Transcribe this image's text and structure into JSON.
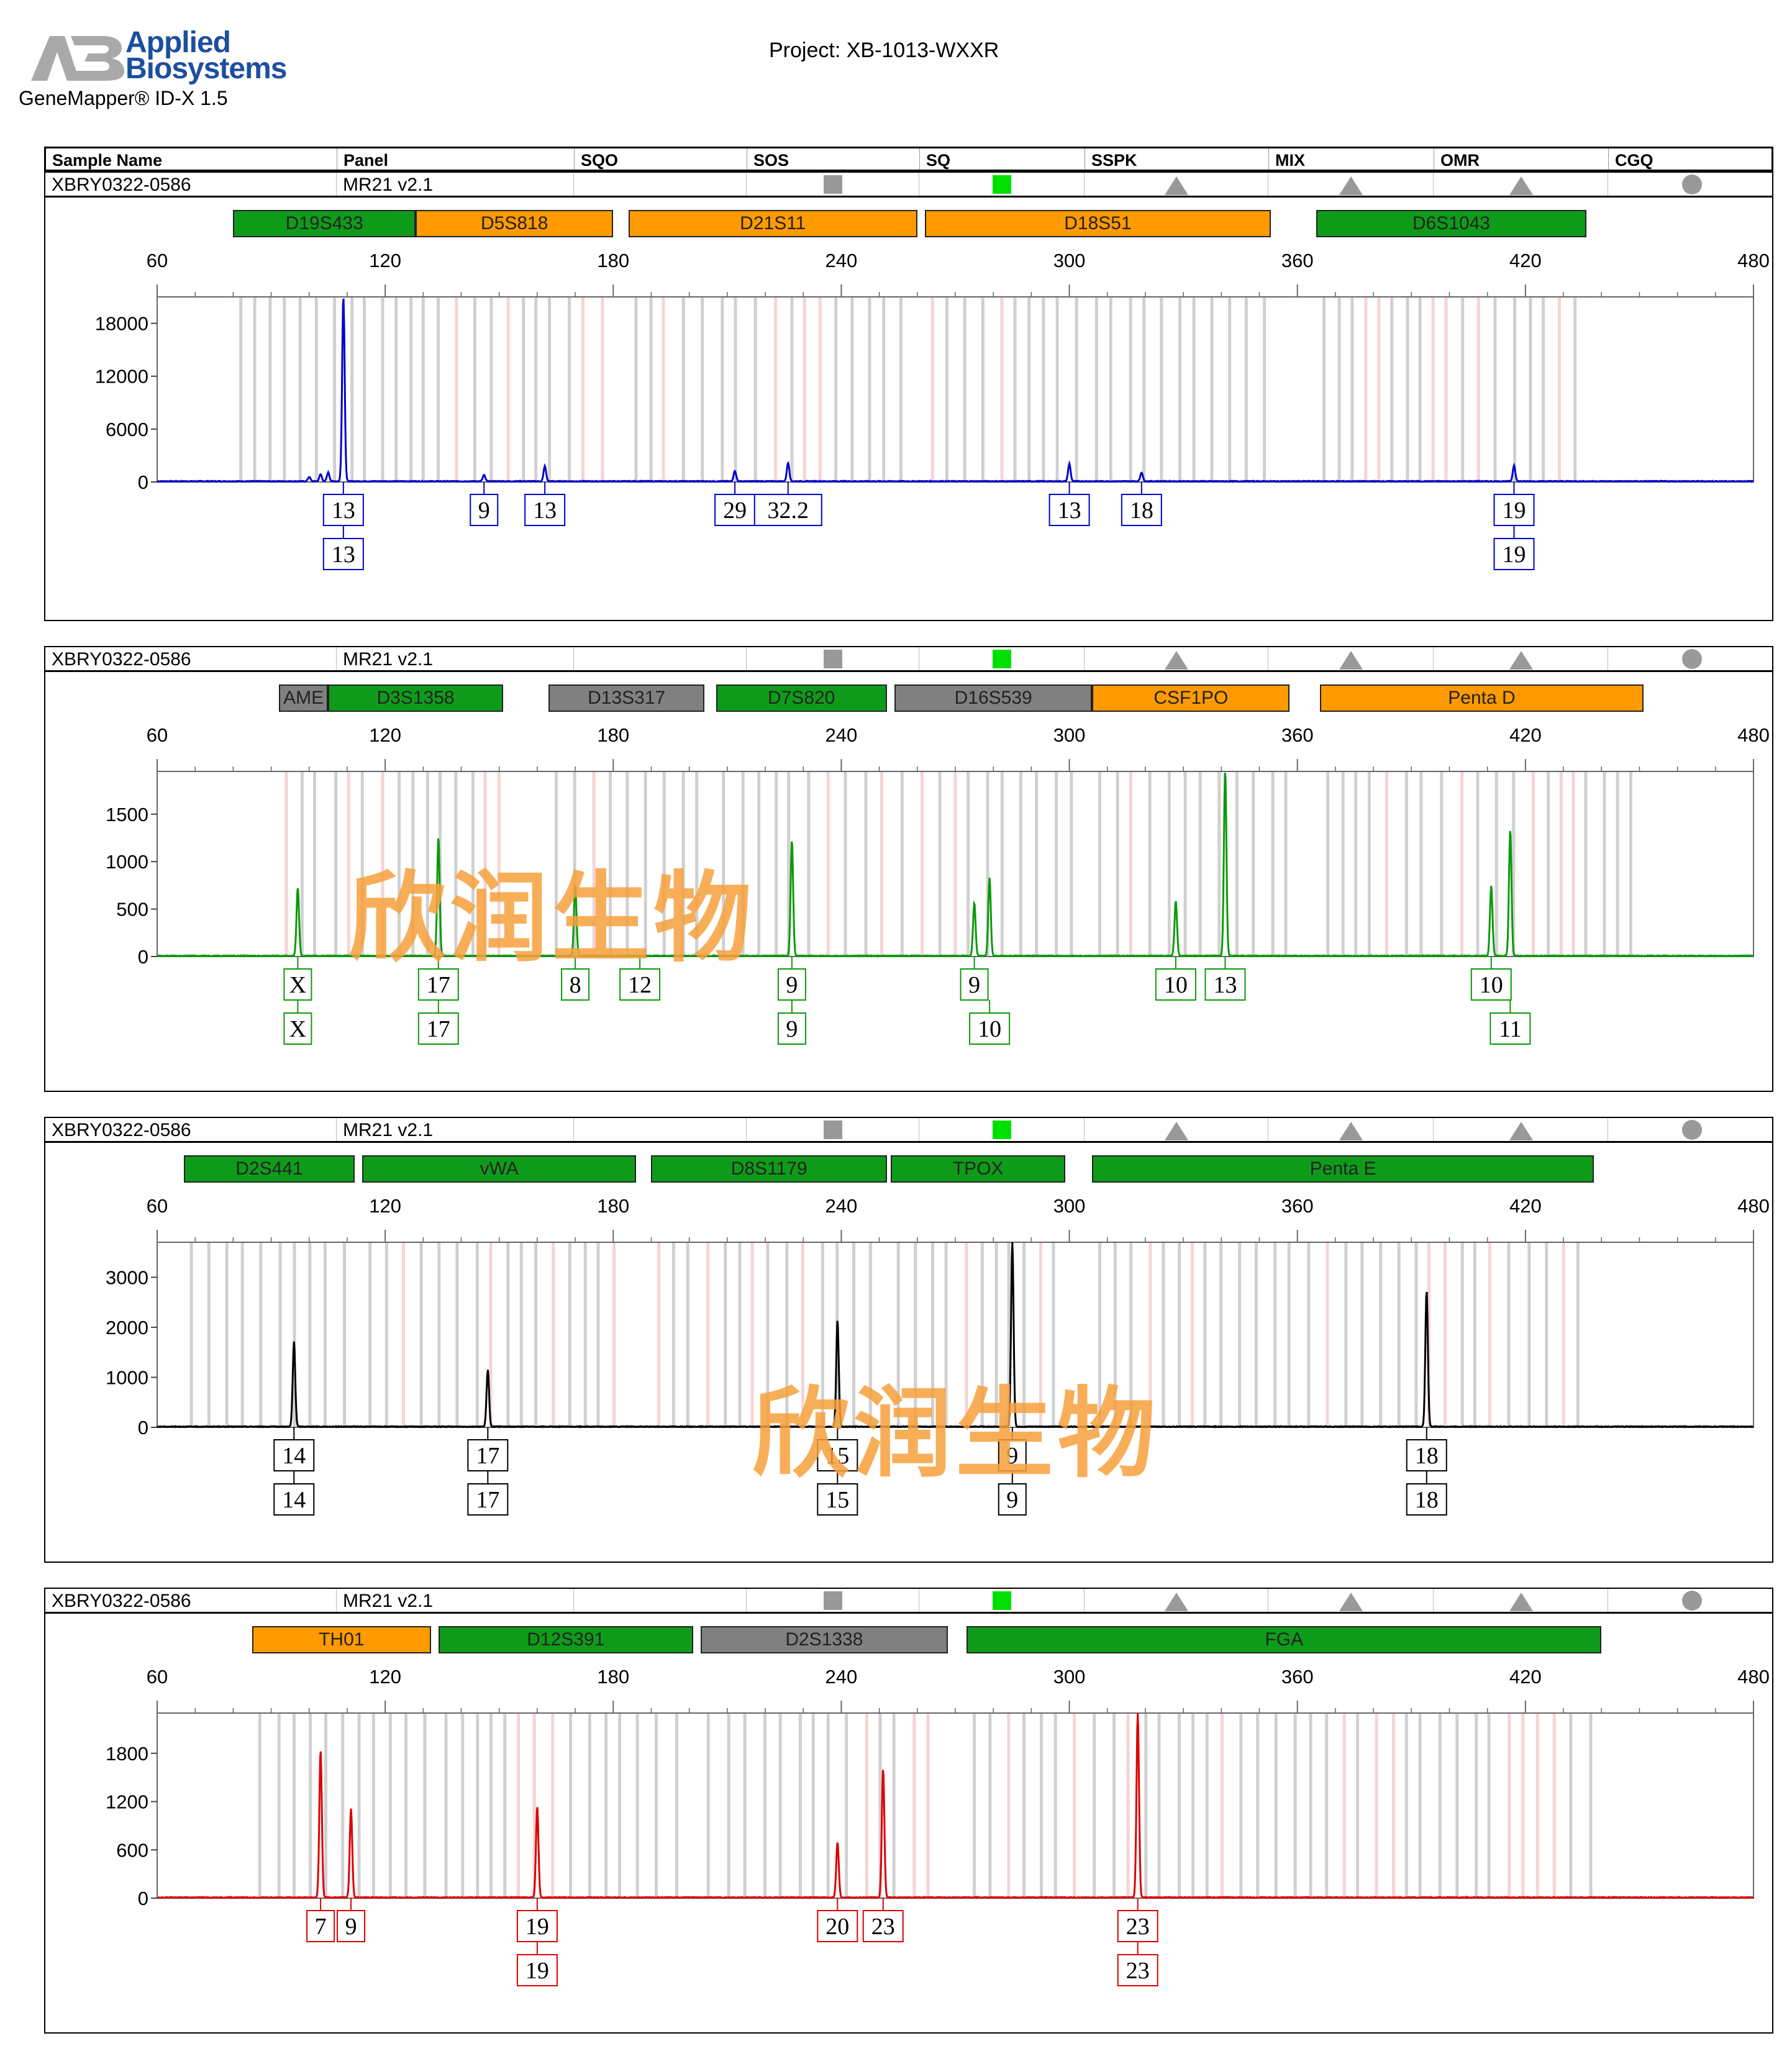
{
  "header": {
    "logo_line1": "Applied",
    "logo_line2": "Biosystems",
    "app_name": "GeneMapper® ID-X  1.5",
    "project": "Project: XB-1013-WXXR"
  },
  "columns": [
    "Sample Name",
    "Panel",
    "SQO",
    "SOS",
    "SQ",
    "SSPK",
    "MIX",
    "OMR",
    "CGQ"
  ],
  "colors": {
    "blue": "#0000cc",
    "green": "#0a9a0a",
    "black": "#000000",
    "red": "#dd0000",
    "marker_green": "#0f9b1a",
    "marker_orange": "#ff9a00",
    "marker_gray": "#808080",
    "indicator_gray": "#999999",
    "indicator_green": "#00e000"
  },
  "watermark": "欣润生物",
  "panels": [
    {
      "sample": "XBRY0322-0586",
      "panel": "MR21  v2.1",
      "indicators": {
        "SOS": "gray-square",
        "SQ": "green-square",
        "SSPK": "gray-triangle",
        "MIX": "gray-triangle",
        "OMR": "gray-triangle",
        "CGQ": "gray-circle"
      }
    },
    {
      "sample": "XBRY0322-0586",
      "panel": "MR21  v2.1",
      "indicators": {
        "SOS": "gray-square",
        "SQ": "green-square",
        "SSPK": "gray-triangle",
        "MIX": "gray-triangle",
        "OMR": "gray-triangle",
        "CGQ": "gray-circle"
      }
    },
    {
      "sample": "XBRY0322-0586",
      "panel": "MR21  v2.1",
      "indicators": {
        "SOS": "gray-square",
        "SQ": "green-square",
        "SSPK": "gray-triangle",
        "MIX": "gray-triangle",
        "OMR": "gray-triangle",
        "CGQ": "gray-circle"
      }
    },
    {
      "sample": "XBRY0322-0586",
      "panel": "MR21  v2.1",
      "indicators": {
        "SOS": "gray-square",
        "SQ": "green-square",
        "SSPK": "gray-triangle",
        "MIX": "gray-triangle",
        "OMR": "gray-triangle",
        "CGQ": "gray-circle"
      }
    }
  ],
  "chart_data": [
    {
      "type": "line",
      "dye": "blue",
      "xlim": [
        60,
        480
      ],
      "x_ticks": [
        60,
        120,
        180,
        240,
        300,
        360,
        420,
        480
      ],
      "ylim": [
        0,
        21000
      ],
      "y_ticks": [
        0,
        6000,
        12000,
        18000
      ],
      "markers": [
        {
          "name": "D19S433",
          "range": [
            80,
            128
          ],
          "color": "green"
        },
        {
          "name": "D5S818",
          "range": [
            128,
            180
          ],
          "color": "orange"
        },
        {
          "name": "D21S11",
          "range": [
            184,
            260
          ],
          "color": "orange"
        },
        {
          "name": "D18S51",
          "range": [
            262,
            353
          ],
          "color": "orange"
        },
        {
          "name": "D6S1043",
          "range": [
            365,
            436
          ],
          "color": "green"
        }
      ],
      "peaks": [
        {
          "x": 100,
          "y": 500
        },
        {
          "x": 103,
          "y": 800
        },
        {
          "x": 105,
          "y": 1000
        },
        {
          "x": 109,
          "y": 21000
        },
        {
          "x": 146,
          "y": 700
        },
        {
          "x": 162,
          "y": 1700
        },
        {
          "x": 212,
          "y": 1200
        },
        {
          "x": 226,
          "y": 2100
        },
        {
          "x": 300,
          "y": 2000
        },
        {
          "x": 319,
          "y": 1000
        },
        {
          "x": 417,
          "y": 1800
        }
      ],
      "calls": [
        {
          "x": 109,
          "alleles": [
            "13",
            "13"
          ]
        },
        {
          "x": 146,
          "alleles": [
            "9"
          ]
        },
        {
          "x": 162,
          "alleles": [
            "13"
          ]
        },
        {
          "x": 212,
          "alleles": [
            "29"
          ]
        },
        {
          "x": 226,
          "alleles": [
            "32.2"
          ]
        },
        {
          "x": 300,
          "alleles": [
            "13"
          ]
        },
        {
          "x": 319,
          "alleles": [
            "18"
          ]
        },
        {
          "x": 417,
          "alleles": [
            "19",
            "19"
          ]
        }
      ]
    },
    {
      "type": "line",
      "dye": "green",
      "xlim": [
        60,
        480
      ],
      "x_ticks": [
        60,
        120,
        180,
        240,
        300,
        360,
        420,
        480
      ],
      "ylim": [
        0,
        1950
      ],
      "y_ticks": [
        0,
        500,
        1000,
        1500
      ],
      "markers": [
        {
          "name": "AME",
          "range": [
            92,
            105
          ],
          "color": "gray"
        },
        {
          "name": "D3S1358",
          "range": [
            105,
            151
          ],
          "color": "green"
        },
        {
          "name": "D13S317",
          "range": [
            163,
            204
          ],
          "color": "gray"
        },
        {
          "name": "D7S820",
          "range": [
            207,
            252
          ],
          "color": "green"
        },
        {
          "name": "D16S539",
          "range": [
            254,
            306
          ],
          "color": "gray"
        },
        {
          "name": "CSF1PO",
          "range": [
            306,
            358
          ],
          "color": "orange"
        },
        {
          "name": "Penta D",
          "range": [
            366,
            451
          ],
          "color": "orange"
        }
      ],
      "peaks": [
        {
          "x": 97,
          "y": 720
        },
        {
          "x": 134,
          "y": 1250
        },
        {
          "x": 170,
          "y": 750
        },
        {
          "x": 227,
          "y": 1220
        },
        {
          "x": 275,
          "y": 560
        },
        {
          "x": 279,
          "y": 820
        },
        {
          "x": 328,
          "y": 580
        },
        {
          "x": 341,
          "y": 1950
        },
        {
          "x": 411,
          "y": 740
        },
        {
          "x": 416,
          "y": 1330
        }
      ],
      "calls": [
        {
          "x": 97,
          "alleles": [
            "X",
            "X"
          ]
        },
        {
          "x": 134,
          "alleles": [
            "17",
            "17"
          ]
        },
        {
          "x": 170,
          "alleles": [
            "8"
          ]
        },
        {
          "x": 187,
          "alleles": [
            "12"
          ]
        },
        {
          "x": 227,
          "alleles": [
            "9",
            "9"
          ]
        },
        {
          "x": 275,
          "alleles": [
            "9"
          ]
        },
        {
          "x": 279,
          "alleles": [
            "",
            "10"
          ]
        },
        {
          "x": 328,
          "alleles": [
            "10"
          ]
        },
        {
          "x": 341,
          "alleles": [
            "13"
          ]
        },
        {
          "x": 411,
          "alleles": [
            "10"
          ]
        },
        {
          "x": 416,
          "alleles": [
            "",
            "11"
          ]
        }
      ]
    },
    {
      "type": "line",
      "dye": "black",
      "xlim": [
        60,
        480
      ],
      "x_ticks": [
        60,
        120,
        180,
        240,
        300,
        360,
        420,
        480
      ],
      "ylim": [
        0,
        3700
      ],
      "y_ticks": [
        0,
        1000,
        2000,
        3000
      ],
      "markers": [
        {
          "name": "D2S441",
          "range": [
            67,
            112
          ],
          "color": "green"
        },
        {
          "name": "vWA",
          "range": [
            114,
            186
          ],
          "color": "green"
        },
        {
          "name": "D8S1179",
          "range": [
            190,
            252
          ],
          "color": "green"
        },
        {
          "name": "TPOX",
          "range": [
            253,
            299
          ],
          "color": "green"
        },
        {
          "name": "Penta E",
          "range": [
            306,
            438
          ],
          "color": "green"
        }
      ],
      "peaks": [
        {
          "x": 96,
          "y": 1700
        },
        {
          "x": 147,
          "y": 1130
        },
        {
          "x": 239,
          "y": 2130
        },
        {
          "x": 285,
          "y": 3700
        },
        {
          "x": 394,
          "y": 2730
        }
      ],
      "calls": [
        {
          "x": 96,
          "alleles": [
            "14",
            "14"
          ]
        },
        {
          "x": 147,
          "alleles": [
            "17",
            "17"
          ]
        },
        {
          "x": 239,
          "alleles": [
            "15",
            "15"
          ]
        },
        {
          "x": 285,
          "alleles": [
            "9",
            "9"
          ]
        },
        {
          "x": 394,
          "alleles": [
            "18",
            "18"
          ]
        }
      ]
    },
    {
      "type": "line",
      "dye": "red",
      "xlim": [
        60,
        480
      ],
      "x_ticks": [
        60,
        120,
        180,
        240,
        300,
        360,
        420,
        480
      ],
      "ylim": [
        0,
        2300
      ],
      "y_ticks": [
        0,
        600,
        1200,
        1800
      ],
      "markers": [
        {
          "name": "TH01",
          "range": [
            85,
            132
          ],
          "color": "orange"
        },
        {
          "name": "D12S391",
          "range": [
            134,
            201
          ],
          "color": "green"
        },
        {
          "name": "D2S1338",
          "range": [
            203,
            268
          ],
          "color": "gray"
        },
        {
          "name": "FGA",
          "range": [
            273,
            440
          ],
          "color": "green"
        }
      ],
      "peaks": [
        {
          "x": 103,
          "y": 1830
        },
        {
          "x": 111,
          "y": 1100
        },
        {
          "x": 160,
          "y": 1130
        },
        {
          "x": 239,
          "y": 690
        },
        {
          "x": 251,
          "y": 1600
        },
        {
          "x": 318,
          "y": 2300
        }
      ],
      "calls": [
        {
          "x": 103,
          "alleles": [
            "7"
          ]
        },
        {
          "x": 111,
          "alleles": [
            "9"
          ]
        },
        {
          "x": 160,
          "alleles": [
            "19",
            "19"
          ]
        },
        {
          "x": 239,
          "alleles": [
            "20"
          ]
        },
        {
          "x": 251,
          "alleles": [
            "23"
          ]
        },
        {
          "x": 318,
          "alleles": [
            "23",
            "23"
          ]
        }
      ]
    }
  ]
}
